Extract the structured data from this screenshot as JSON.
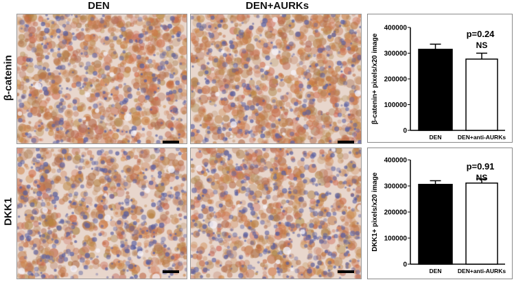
{
  "columns": [
    "DEN",
    "DEN+AURKs"
  ],
  "rows": [
    "β-catenin",
    "DKK1"
  ],
  "colors": {
    "stain_brown": "#b8773f",
    "nuclei_blue": "#6a6fa8",
    "background": "#e8d6cc",
    "bar_den": "#000000",
    "bar_treated": "#ffffff"
  },
  "chart_data": [
    {
      "type": "bar",
      "categories": [
        "DEN",
        "DEN+anti-AURKs"
      ],
      "values": [
        315000,
        277000
      ],
      "errors": [
        20000,
        23000
      ],
      "ylabel": "β-catenin+ pixels/x20 image",
      "ylim": [
        0,
        400000
      ],
      "yticks": [
        "0",
        "100000",
        "200000",
        "300000",
        "400000"
      ],
      "annotations": [
        "p=0.24",
        "NS"
      ]
    },
    {
      "type": "bar",
      "categories": [
        "DEN",
        "DEN+anti-AURKs"
      ],
      "values": [
        306000,
        311000
      ],
      "errors": [
        14000,
        16000
      ],
      "ylabel": "DKK1+ pixels/x20 image",
      "ylim": [
        0,
        400000
      ],
      "yticks": [
        "0",
        "100000",
        "200000",
        "300000",
        "400000"
      ],
      "annotations": [
        "p=0.91",
        "NS"
      ]
    }
  ]
}
